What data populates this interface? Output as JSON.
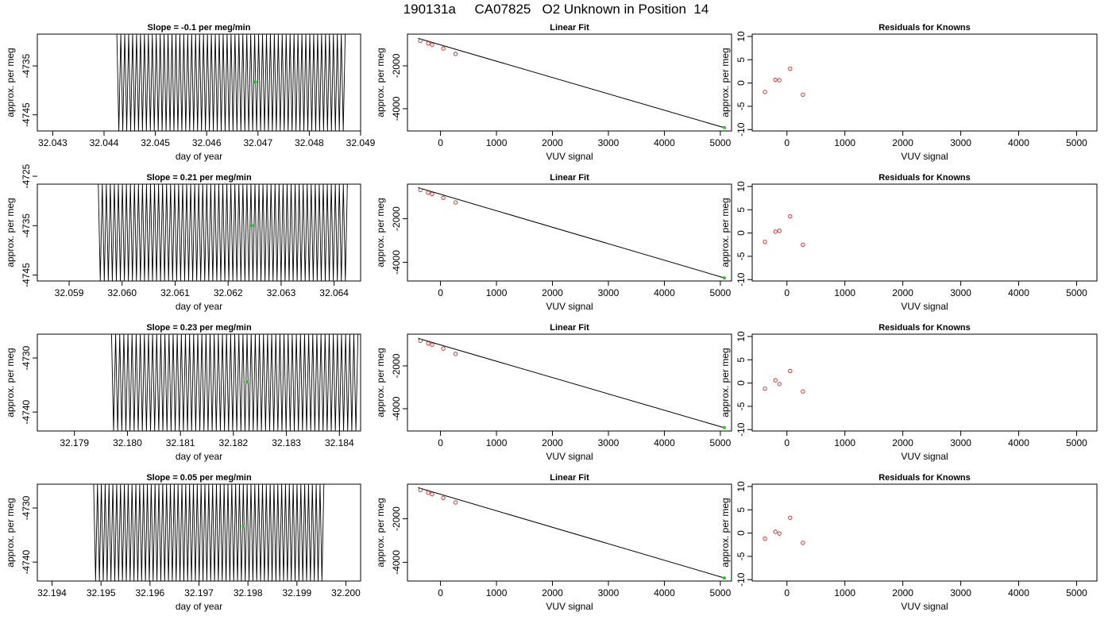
{
  "page_title": "190131a     CA07825   O2 Unknown in Position  14",
  "colors": {
    "trace": "#000000",
    "highlight": "#22cc22",
    "knowns": "#cc2222",
    "axis": "#000000"
  },
  "chart_data": [
    {
      "type": "line",
      "title": "Slope =  -0.1  per meg/min",
      "xlabel": "day of year",
      "ylabel": "approx. per meg",
      "xlim": [
        32.0427,
        32.049
      ],
      "ylim": [
        -4748.3,
        -4728.5
      ],
      "xticks": [
        "32.043",
        "32.044",
        "32.045",
        "32.046",
        "32.047",
        "32.048",
        "32.049"
      ],
      "xtick_values": [
        32.043,
        32.044,
        32.045,
        32.046,
        32.047,
        32.048,
        32.049
      ],
      "yticks": [
        "-4735",
        "-4745"
      ],
      "ytick_values": [
        -4735,
        -4745
      ],
      "trace": {
        "x_start": 32.04425,
        "x_end": 32.0487,
        "y_high": -4728.5,
        "y_low": -4748.3,
        "cycles": 58
      },
      "highlight_point": {
        "x": 32.04695,
        "y": -4738.3
      }
    },
    {
      "type": "scatter",
      "title": "Linear Fit",
      "xlabel": "VUV signal",
      "ylabel": "approx. per meg",
      "xlim": [
        -590,
        5200
      ],
      "ylim": [
        -5040,
        -520
      ],
      "xticks": [
        "0",
        "1000",
        "2000",
        "3000",
        "4000",
        "5000"
      ],
      "xtick_values": [
        0,
        1000,
        2000,
        3000,
        4000,
        5000
      ],
      "yticks": [
        "-2000",
        "-4000"
      ],
      "ytick_values": [
        -2000,
        -4000
      ],
      "fit_line": {
        "x": [
          -400,
          5100
        ],
        "y": [
          -716,
          -4910
        ]
      },
      "knowns": {
        "x": [
          -360,
          -220,
          -150,
          50,
          270
        ],
        "y": [
          -830,
          -950,
          -1010,
          -1190,
          -1440
        ]
      },
      "unknown": {
        "x": 5070,
        "y": -4880
      }
    },
    {
      "type": "scatter",
      "title": "Residuals for Knowns",
      "xlabel": "VUV signal",
      "ylabel": "approx. per meg",
      "xlim": [
        -600,
        5350
      ],
      "ylim": [
        -10.3,
        10.5
      ],
      "xticks": [
        "0",
        "1000",
        "2000",
        "3000",
        "4000",
        "5000"
      ],
      "xtick_values": [
        0,
        1000,
        2000,
        3000,
        4000,
        5000
      ],
      "yticks": [
        "-10",
        "-5",
        "0",
        "5",
        "10"
      ],
      "ytick_values": [
        -10,
        -5,
        0,
        5,
        10
      ],
      "knowns": {
        "x": [
          -380,
          -200,
          -130,
          55,
          275
        ],
        "y": [
          -1.9,
          0.7,
          0.6,
          3.1,
          -2.5
        ]
      }
    },
    {
      "type": "line",
      "title": "Slope =  0.21  per meg/min",
      "xlabel": "day of year",
      "ylabel": "approx. per meg",
      "xlim": [
        32.0584,
        32.0645
      ],
      "ylim": [
        -4746.2,
        -4726.6
      ],
      "xticks": [
        "32.059",
        "32.060",
        "32.061",
        "32.062",
        "32.063",
        "32.064"
      ],
      "xtick_values": [
        32.059,
        32.06,
        32.061,
        32.062,
        32.063,
        32.064
      ],
      "yticks": [
        "-4725",
        "-4735",
        "-4745"
      ],
      "ytick_values": [
        -4725,
        -4735,
        -4745
      ],
      "trace": {
        "x_start": 32.05955,
        "x_end": 32.06425,
        "y_high": -4726.6,
        "y_low": -4746.2,
        "cycles": 62
      },
      "highlight_point": {
        "x": 32.06245,
        "y": -4735
      }
    },
    {
      "type": "scatter",
      "title": "Linear Fit",
      "xlabel": "VUV signal",
      "ylabel": "approx. per meg",
      "xlim": [
        -590,
        5200
      ],
      "ylim": [
        -4860,
        -410
      ],
      "xticks": [
        "0",
        "1000",
        "2000",
        "3000",
        "4000",
        "5000"
      ],
      "xtick_values": [
        0,
        1000,
        2000,
        3000,
        4000,
        5000
      ],
      "yticks": [
        "-2000",
        "-4000"
      ],
      "ytick_values": [
        -2000,
        -4000
      ],
      "fit_line": {
        "x": [
          -400,
          5100
        ],
        "y": [
          -570,
          -4740
        ]
      },
      "knowns": {
        "x": [
          -360,
          -220,
          -150,
          50,
          270
        ],
        "y": [
          -680,
          -800,
          -860,
          -1040,
          -1250
        ]
      },
      "unknown": {
        "x": 5070,
        "y": -4720
      }
    },
    {
      "type": "scatter",
      "title": "Residuals for Knowns",
      "xlabel": "VUV signal",
      "ylabel": "approx. per meg",
      "xlim": [
        -600,
        5350
      ],
      "ylim": [
        -10.3,
        10.5
      ],
      "xticks": [
        "0",
        "1000",
        "2000",
        "3000",
        "4000",
        "5000"
      ],
      "xtick_values": [
        0,
        1000,
        2000,
        3000,
        4000,
        5000
      ],
      "yticks": [
        "-10",
        "-5",
        "0",
        "5",
        "10"
      ],
      "ytick_values": [
        -10,
        -5,
        0,
        5,
        10
      ],
      "knowns": {
        "x": [
          -380,
          -200,
          -130,
          55,
          275
        ],
        "y": [
          -1.9,
          0.3,
          0.5,
          3.6,
          -2.5
        ]
      }
    },
    {
      "type": "line",
      "title": "Slope =  0.23  per meg/min",
      "xlabel": "day of year",
      "ylabel": "approx. per meg",
      "xlim": [
        32.1783,
        32.1844
      ],
      "ylim": [
        -4743.5,
        -4725.6
      ],
      "xticks": [
        "32.179",
        "32.180",
        "32.181",
        "32.182",
        "32.183",
        "32.184"
      ],
      "xtick_values": [
        32.179,
        32.18,
        32.181,
        32.182,
        32.183,
        32.184
      ],
      "yticks": [
        "-4730",
        "-4740"
      ],
      "ytick_values": [
        -4730,
        -4740
      ],
      "trace": {
        "x_start": 32.1797,
        "x_end": 32.18435,
        "y_high": -4725.6,
        "y_low": -4743.5,
        "cycles": 60
      },
      "highlight_point": {
        "x": 32.18225,
        "y": -4734.4
      }
    },
    {
      "type": "scatter",
      "title": "Linear Fit",
      "xlabel": "VUV signal",
      "ylabel": "approx. per meg",
      "xlim": [
        -590,
        5200
      ],
      "ylim": [
        -5040,
        -520
      ],
      "xticks": [
        "0",
        "1000",
        "2000",
        "3000",
        "4000",
        "5000"
      ],
      "xtick_values": [
        0,
        1000,
        2000,
        3000,
        4000,
        5000
      ],
      "yticks": [
        "-2000",
        "-4000"
      ],
      "ytick_values": [
        -2000,
        -4000
      ],
      "fit_line": {
        "x": [
          -400,
          5100
        ],
        "y": [
          -716,
          -4910
        ]
      },
      "knowns": {
        "x": [
          -360,
          -220,
          -150,
          50,
          270
        ],
        "y": [
          -830,
          -950,
          -1010,
          -1190,
          -1440
        ]
      },
      "unknown": {
        "x": 5070,
        "y": -4880
      }
    },
    {
      "type": "scatter",
      "title": "Residuals for Knowns",
      "xlabel": "VUV signal",
      "ylabel": "approx. per meg",
      "xlim": [
        -600,
        5350
      ],
      "ylim": [
        -10.3,
        10.5
      ],
      "xticks": [
        "0",
        "1000",
        "2000",
        "3000",
        "4000",
        "5000"
      ],
      "xtick_values": [
        0,
        1000,
        2000,
        3000,
        4000,
        5000
      ],
      "yticks": [
        "-10",
        "-5",
        "0",
        "5",
        "10"
      ],
      "ytick_values": [
        -10,
        -5,
        0,
        5,
        10
      ],
      "knowns": {
        "x": [
          -380,
          -200,
          -130,
          55,
          275
        ],
        "y": [
          -1.2,
          0.6,
          -0.2,
          2.6,
          -1.8
        ]
      }
    },
    {
      "type": "line",
      "title": "Slope =  0.05  per meg/min",
      "xlabel": "day of year",
      "ylabel": "approx. per meg",
      "xlim": [
        32.1937,
        32.2003
      ],
      "ylim": [
        -4743.5,
        -4725.6
      ],
      "xticks": [
        "32.194",
        "32.195",
        "32.196",
        "32.197",
        "32.198",
        "32.199",
        "32.200"
      ],
      "xtick_values": [
        32.194,
        32.195,
        32.196,
        32.197,
        32.198,
        32.199,
        32.2
      ],
      "yticks": [
        "-4730",
        "-4740"
      ],
      "ytick_values": [
        -4730,
        -4740
      ],
      "trace": {
        "x_start": 32.19485,
        "x_end": 32.19955,
        "y_high": -4725.6,
        "y_low": -4743.5,
        "cycles": 60
      },
      "highlight_point": {
        "x": 32.1979,
        "y": -4733.4
      }
    },
    {
      "type": "scatter",
      "title": "Linear Fit",
      "xlabel": "VUV signal",
      "ylabel": "approx. per meg",
      "xlim": [
        -590,
        5200
      ],
      "ylim": [
        -4860,
        -410
      ],
      "xticks": [
        "0",
        "1000",
        "2000",
        "3000",
        "4000",
        "5000"
      ],
      "xtick_values": [
        0,
        1000,
        2000,
        3000,
        4000,
        5000
      ],
      "yticks": [
        "-2000",
        "-4000"
      ],
      "ytick_values": [
        -2000,
        -4000
      ],
      "fit_line": {
        "x": [
          -400,
          5100
        ],
        "y": [
          -570,
          -4740
        ]
      },
      "knowns": {
        "x": [
          -360,
          -220,
          -150,
          50,
          270
        ],
        "y": [
          -680,
          -800,
          -860,
          -1040,
          -1250
        ]
      },
      "unknown": {
        "x": 5070,
        "y": -4720
      }
    },
    {
      "type": "scatter",
      "title": "Residuals for Knowns",
      "xlabel": "VUV signal",
      "ylabel": "approx. per meg",
      "xlim": [
        -600,
        5350
      ],
      "ylim": [
        -10.3,
        10.5
      ],
      "xticks": [
        "0",
        "1000",
        "2000",
        "3000",
        "4000",
        "5000"
      ],
      "xtick_values": [
        0,
        1000,
        2000,
        3000,
        4000,
        5000
      ],
      "yticks": [
        "-10",
        "-5",
        "0",
        "5",
        "10"
      ],
      "ytick_values": [
        -10,
        -5,
        0,
        5,
        10
      ],
      "knowns": {
        "x": [
          -380,
          -200,
          -130,
          55,
          275
        ],
        "y": [
          -1.2,
          0.3,
          -0.1,
          3.3,
          -2.1
        ]
      }
    }
  ]
}
